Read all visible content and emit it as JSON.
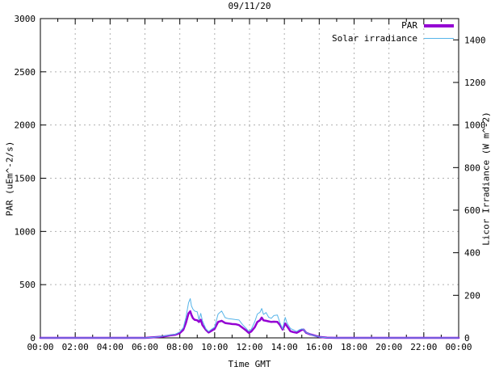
{
  "chart_data": {
    "type": "line",
    "title": "09/11/20",
    "xlabel": "Time GMT",
    "ylabel": "PAR (uEm^-2/s)",
    "y2label": "Licor Irradiance (W m^-2)",
    "xlim_hours": [
      0,
      24
    ],
    "ylim": [
      0,
      3000
    ],
    "y2lim": [
      0,
      1500
    ],
    "y_ticks": [
      0,
      500,
      1000,
      1500,
      2000,
      2500,
      3000
    ],
    "y2_ticks": [
      0,
      200,
      400,
      600,
      800,
      1000,
      1200,
      1400
    ],
    "x_tick_hours": [
      0,
      2,
      4,
      6,
      8,
      10,
      12,
      14,
      16,
      18,
      20,
      22,
      24
    ],
    "x_tick_labels": [
      "00:00",
      "02:00",
      "04:00",
      "06:00",
      "08:00",
      "10:00",
      "12:00",
      "14:00",
      "16:00",
      "18:00",
      "20:00",
      "22:00",
      "00:00"
    ],
    "x_minor_hours": [
      1,
      3,
      5,
      7,
      9,
      11,
      13,
      15,
      17,
      19,
      21,
      23
    ],
    "grid": true,
    "legend_position": "top-right",
    "colors": {
      "border": "#000000",
      "grid": "#b0b0b0",
      "background": "#ffffff"
    },
    "x_hours": [
      0,
      1,
      2,
      3,
      4,
      5,
      6,
      6.5,
      6.75,
      7,
      7.25,
      7.5,
      7.75,
      8,
      8.2,
      8.35,
      8.5,
      8.6,
      8.67,
      8.75,
      8.85,
      9,
      9.1,
      9.2,
      9.3,
      9.5,
      9.65,
      9.85,
      10,
      10.2,
      10.4,
      10.6,
      10.8,
      11,
      11.2,
      11.4,
      11.6,
      11.8,
      11.95,
      12.1,
      12.3,
      12.45,
      12.6,
      12.7,
      12.8,
      12.95,
      13.1,
      13.25,
      13.4,
      13.6,
      13.75,
      13.9,
      14.05,
      14.15,
      14.35,
      14.5,
      14.7,
      14.85,
      15,
      15.1,
      15.25,
      15.45,
      15.6,
      15.8,
      16,
      16.2,
      16.45,
      17,
      18,
      19,
      20,
      21,
      22,
      23,
      24
    ],
    "series": [
      {
        "name": "PAR",
        "axis": "left",
        "units": "uEm^-2/s",
        "color": "#9400d3",
        "stroke_width": 2.5,
        "legend_line_weight": 4,
        "values": [
          0,
          0,
          0,
          0,
          0,
          0,
          0,
          5,
          8,
          12,
          18,
          25,
          30,
          45,
          75,
          140,
          230,
          250,
          215,
          185,
          170,
          165,
          150,
          170,
          120,
          75,
          50,
          70,
          85,
          150,
          160,
          140,
          135,
          130,
          128,
          120,
          95,
          70,
          48,
          60,
          100,
          150,
          165,
          190,
          165,
          160,
          155,
          150,
          152,
          150,
          120,
          78,
          135,
          110,
          62,
          55,
          48,
          60,
          75,
          78,
          48,
          35,
          28,
          18,
          10,
          6,
          2,
          0,
          0,
          0,
          0,
          0,
          0,
          0,
          0
        ]
      },
      {
        "name": "Solar irradiance",
        "axis": "right",
        "units": "W m^-2",
        "color": "#56b4e9",
        "stroke_width": 1,
        "legend_line_weight": 1.5,
        "values": [
          0,
          0,
          0,
          0,
          0,
          0,
          0,
          3,
          5,
          8,
          11,
          14,
          17,
          28,
          48,
          95,
          165,
          184,
          150,
          135,
          126,
          122,
          85,
          115,
          80,
          42,
          30,
          42,
          50,
          112,
          126,
          95,
          90,
          88,
          86,
          84,
          62,
          45,
          31,
          40,
          76,
          112,
          120,
          138,
          110,
          119,
          97,
          92,
          105,
          107,
          70,
          42,
          96,
          70,
          44,
          38,
          30,
          38,
          42,
          40,
          25,
          18,
          13,
          8,
          5,
          3,
          1,
          0,
          0,
          0,
          0,
          0,
          0,
          0,
          0
        ]
      }
    ]
  }
}
